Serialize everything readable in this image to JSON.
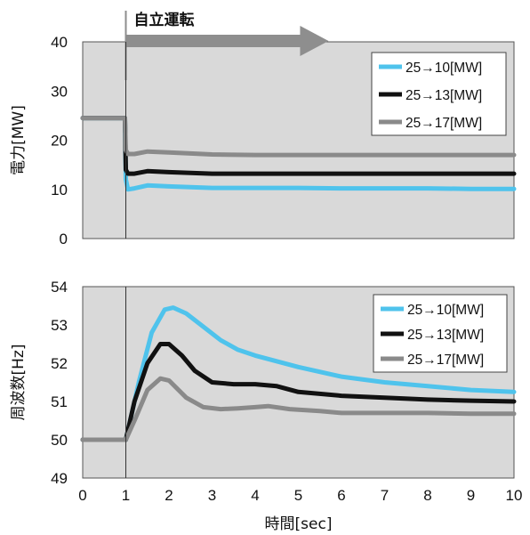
{
  "chart_data": [
    {
      "type": "line",
      "xlabel": "",
      "ylabel": "電力[MW]",
      "xlim": [
        0,
        10
      ],
      "ylim": [
        0,
        40
      ],
      "yticks": [
        0,
        10,
        20,
        30,
        40
      ],
      "grid": false,
      "legend_position": "top-right",
      "annotation": {
        "text": "自立運転",
        "x_start": 1,
        "x_end": 5.7
      },
      "series": [
        {
          "name": "25→10[MW]",
          "color": "#4fc3ec",
          "x": [
            0,
            0.98,
            1.0,
            1.05,
            1.2,
            1.5,
            2,
            3,
            4,
            5,
            6,
            7,
            8,
            9,
            10
          ],
          "y": [
            24.5,
            24.5,
            12,
            10,
            10.2,
            10.8,
            10.6,
            10.3,
            10.3,
            10.3,
            10.2,
            10.2,
            10.2,
            10.1,
            10.1
          ]
        },
        {
          "name": "25→13[MW]",
          "color": "#111111",
          "x": [
            0,
            0.98,
            1.0,
            1.05,
            1.2,
            1.5,
            2,
            3,
            4,
            5,
            6,
            7,
            8,
            9,
            10
          ],
          "y": [
            24.5,
            24.5,
            14,
            13.2,
            13.2,
            13.7,
            13.5,
            13.2,
            13.2,
            13.2,
            13.2,
            13.2,
            13.2,
            13.2,
            13.2
          ]
        },
        {
          "name": "25→17[MW]",
          "color": "#8a8a8a",
          "x": [
            0,
            0.98,
            1.0,
            1.05,
            1.2,
            1.5,
            2,
            3,
            4,
            5,
            6,
            7,
            8,
            9,
            10
          ],
          "y": [
            24.5,
            24.5,
            18,
            17.2,
            17.2,
            17.7,
            17.5,
            17.1,
            17.0,
            17.0,
            17.0,
            17.0,
            17.0,
            17.0,
            17.0
          ]
        }
      ]
    },
    {
      "type": "line",
      "xlabel": "時間[sec]",
      "ylabel": "周波数[Hz]",
      "xlim": [
        0,
        10
      ],
      "ylim": [
        49,
        54
      ],
      "xticks": [
        0,
        1,
        2,
        3,
        4,
        5,
        6,
        7,
        8,
        9,
        10
      ],
      "yticks": [
        49,
        50,
        51,
        52,
        53,
        54
      ],
      "grid": false,
      "legend_position": "top-right",
      "series": [
        {
          "name": "25→10[MW]",
          "color": "#4fc3ec",
          "x": [
            0,
            1,
            1.3,
            1.6,
            1.9,
            2.1,
            2.4,
            2.8,
            3.2,
            3.6,
            4,
            5,
            6,
            7,
            8,
            9,
            10
          ],
          "y": [
            50,
            50,
            51.5,
            52.8,
            53.4,
            53.45,
            53.3,
            52.95,
            52.6,
            52.35,
            52.2,
            51.9,
            51.65,
            51.5,
            51.4,
            51.3,
            51.25
          ]
        },
        {
          "name": "25→13[MW]",
          "color": "#111111",
          "x": [
            0,
            1,
            1.2,
            1.5,
            1.8,
            2.0,
            2.3,
            2.6,
            3.0,
            3.5,
            4.0,
            4.5,
            5,
            6,
            7,
            8,
            9,
            10
          ],
          "y": [
            50,
            50,
            51.0,
            52.0,
            52.5,
            52.5,
            52.2,
            51.8,
            51.5,
            51.45,
            51.45,
            51.4,
            51.25,
            51.15,
            51.1,
            51.05,
            51.02,
            51.0
          ]
        },
        {
          "name": "25→17[MW]",
          "color": "#8a8a8a",
          "x": [
            0,
            1,
            1.2,
            1.5,
            1.8,
            2.0,
            2.4,
            2.8,
            3.2,
            3.6,
            4.0,
            4.3,
            4.8,
            5.5,
            6,
            7,
            8,
            9,
            10
          ],
          "y": [
            50,
            50,
            50.5,
            51.3,
            51.6,
            51.55,
            51.1,
            50.85,
            50.8,
            50.82,
            50.85,
            50.88,
            50.8,
            50.75,
            50.7,
            50.7,
            50.7,
            50.68,
            50.68
          ]
        }
      ]
    }
  ]
}
